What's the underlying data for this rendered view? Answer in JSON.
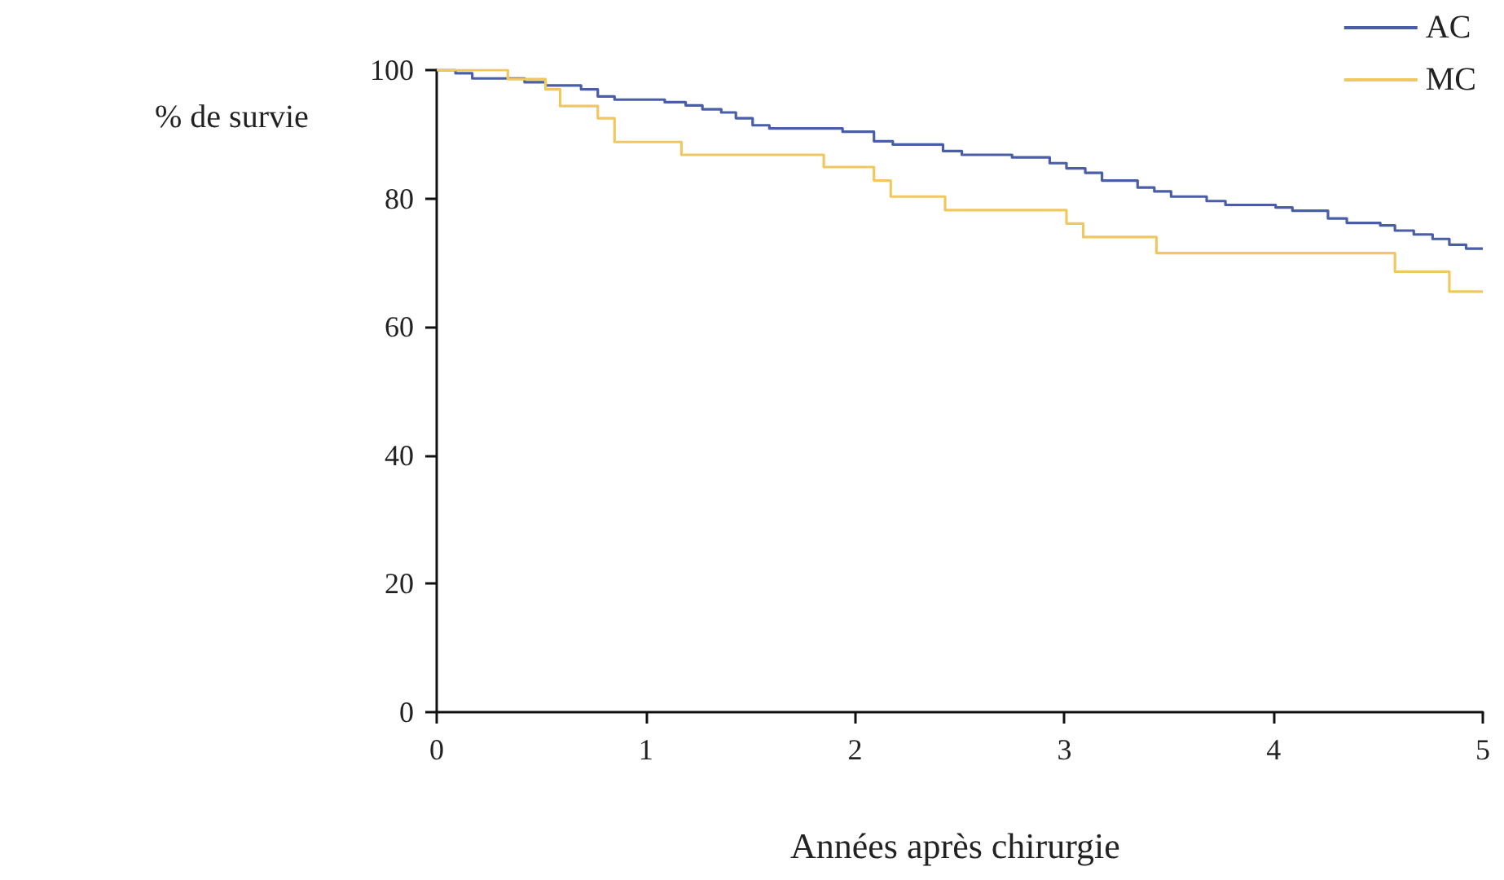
{
  "chart_data": {
    "type": "step",
    "xlabel": "Années après chirurgie",
    "ylabel": "% de survie",
    "xlim": [
      0,
      5
    ],
    "xticks": [
      0,
      1,
      2,
      3,
      4,
      5
    ],
    "ylim": [
      0,
      100
    ],
    "yticks": [
      0,
      20,
      40,
      60,
      80,
      100
    ],
    "grid": false,
    "legend": "top right",
    "marker": "none",
    "line_style": "solid",
    "series": [
      {
        "name": "AC",
        "color": "#4a5ea8",
        "x": [
          0,
          0.09,
          0.17,
          0.42,
          0.52,
          0.69,
          0.77,
          0.85,
          1.09,
          1.19,
          1.27,
          1.36,
          1.43,
          1.51,
          1.59,
          1.94,
          2.09,
          2.18,
          2.42,
          2.51,
          2.75,
          2.93,
          3.01,
          3.1,
          3.18,
          3.35,
          3.43,
          3.51,
          3.68,
          3.77,
          4.01,
          4.09,
          4.26,
          4.35,
          4.51,
          4.58,
          4.67,
          4.76,
          4.84,
          4.92,
          5
        ],
        "values": [
          100,
          99.5,
          98.7,
          98.1,
          97.6,
          97,
          95.9,
          95.4,
          95,
          94.5,
          93.9,
          93.4,
          92.5,
          91.4,
          90.9,
          90.4,
          88.9,
          88.4,
          87.4,
          86.8,
          86.4,
          85.5,
          84.7,
          84,
          82.8,
          81.7,
          81.1,
          80.3,
          79.6,
          79,
          78.6,
          78.1,
          76.9,
          76.2,
          75.8,
          75,
          74.4,
          73.7,
          72.8,
          72.2,
          72.2
        ]
      },
      {
        "name": "MC",
        "color": "#f0c860",
        "x": [
          0,
          0.34,
          0.52,
          0.59,
          0.77,
          0.85,
          1.17,
          1.85,
          2.09,
          2.17,
          2.43,
          3.01,
          3.09,
          3.44,
          4.58,
          4.84,
          5
        ],
        "values": [
          100,
          98.6,
          97,
          94.4,
          92.5,
          88.8,
          86.8,
          84.9,
          82.8,
          80.3,
          78.2,
          76.1,
          74,
          71.5,
          68.6,
          65.5,
          65.5
        ]
      }
    ]
  }
}
